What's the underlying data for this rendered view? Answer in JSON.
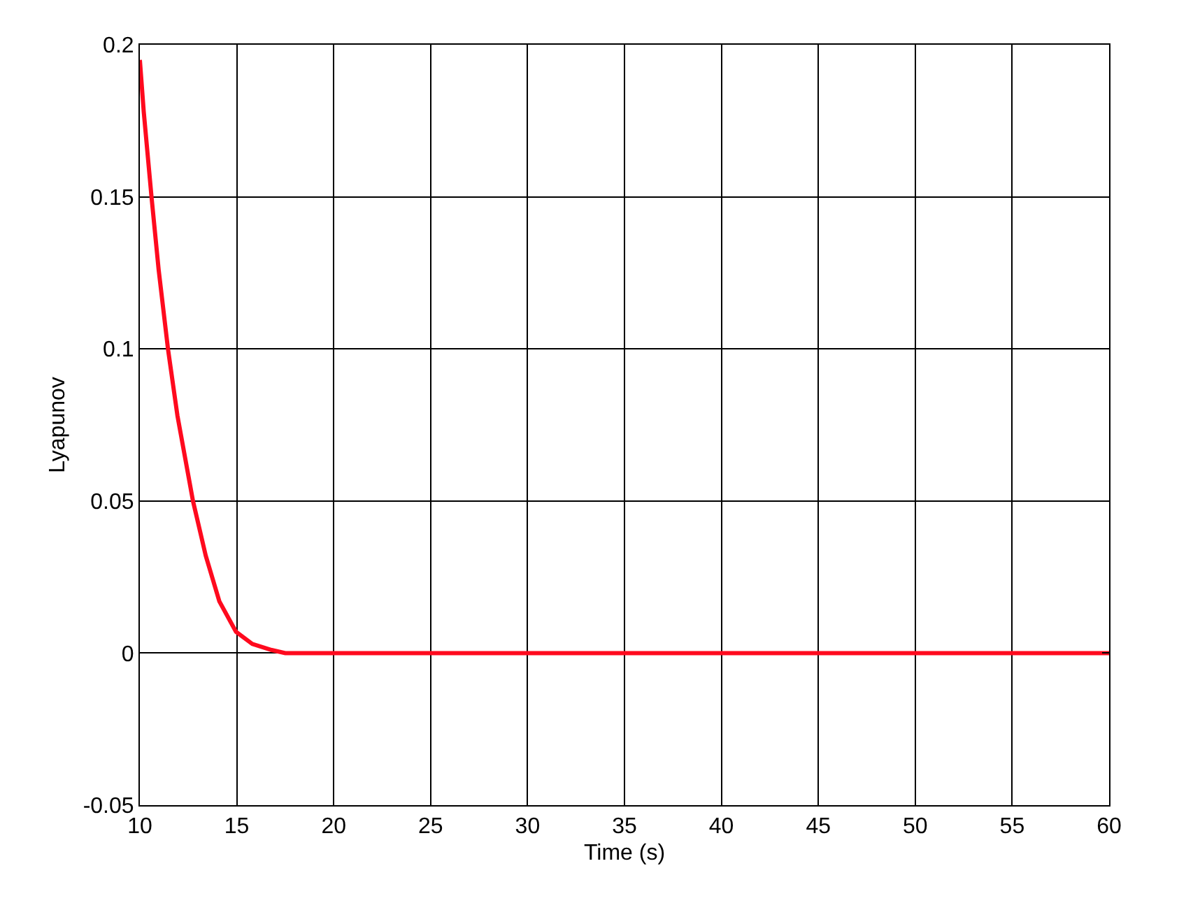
{
  "chart_data": {
    "type": "line",
    "xlabel": "Time (s)",
    "ylabel": "Lyapunov",
    "series": [
      {
        "color": "#ff0a1e",
        "x": [
          10,
          10.2,
          10.6,
          10.97,
          11.45,
          11.94,
          12.74,
          13.4,
          14.1,
          14.96,
          15.8,
          16.8,
          17.5,
          20,
          30,
          40,
          50,
          60
        ],
        "values": [
          0.195,
          0.178,
          0.15,
          0.126,
          0.1,
          0.078,
          0.05,
          0.032,
          0.017,
          0.007,
          0.003,
          0.001,
          0,
          0,
          0,
          0,
          0,
          0
        ]
      }
    ],
    "xlim": [
      10,
      60
    ],
    "xticks": [
      10,
      15,
      20,
      25,
      30,
      35,
      40,
      45,
      50,
      55,
      60
    ],
    "ylim": [
      -0.05,
      0.2
    ],
    "yticks": [
      -0.05,
      0,
      0.05,
      0.1,
      0.15,
      0.2
    ],
    "grid": true,
    "line_style": "solid",
    "marker": "none"
  }
}
